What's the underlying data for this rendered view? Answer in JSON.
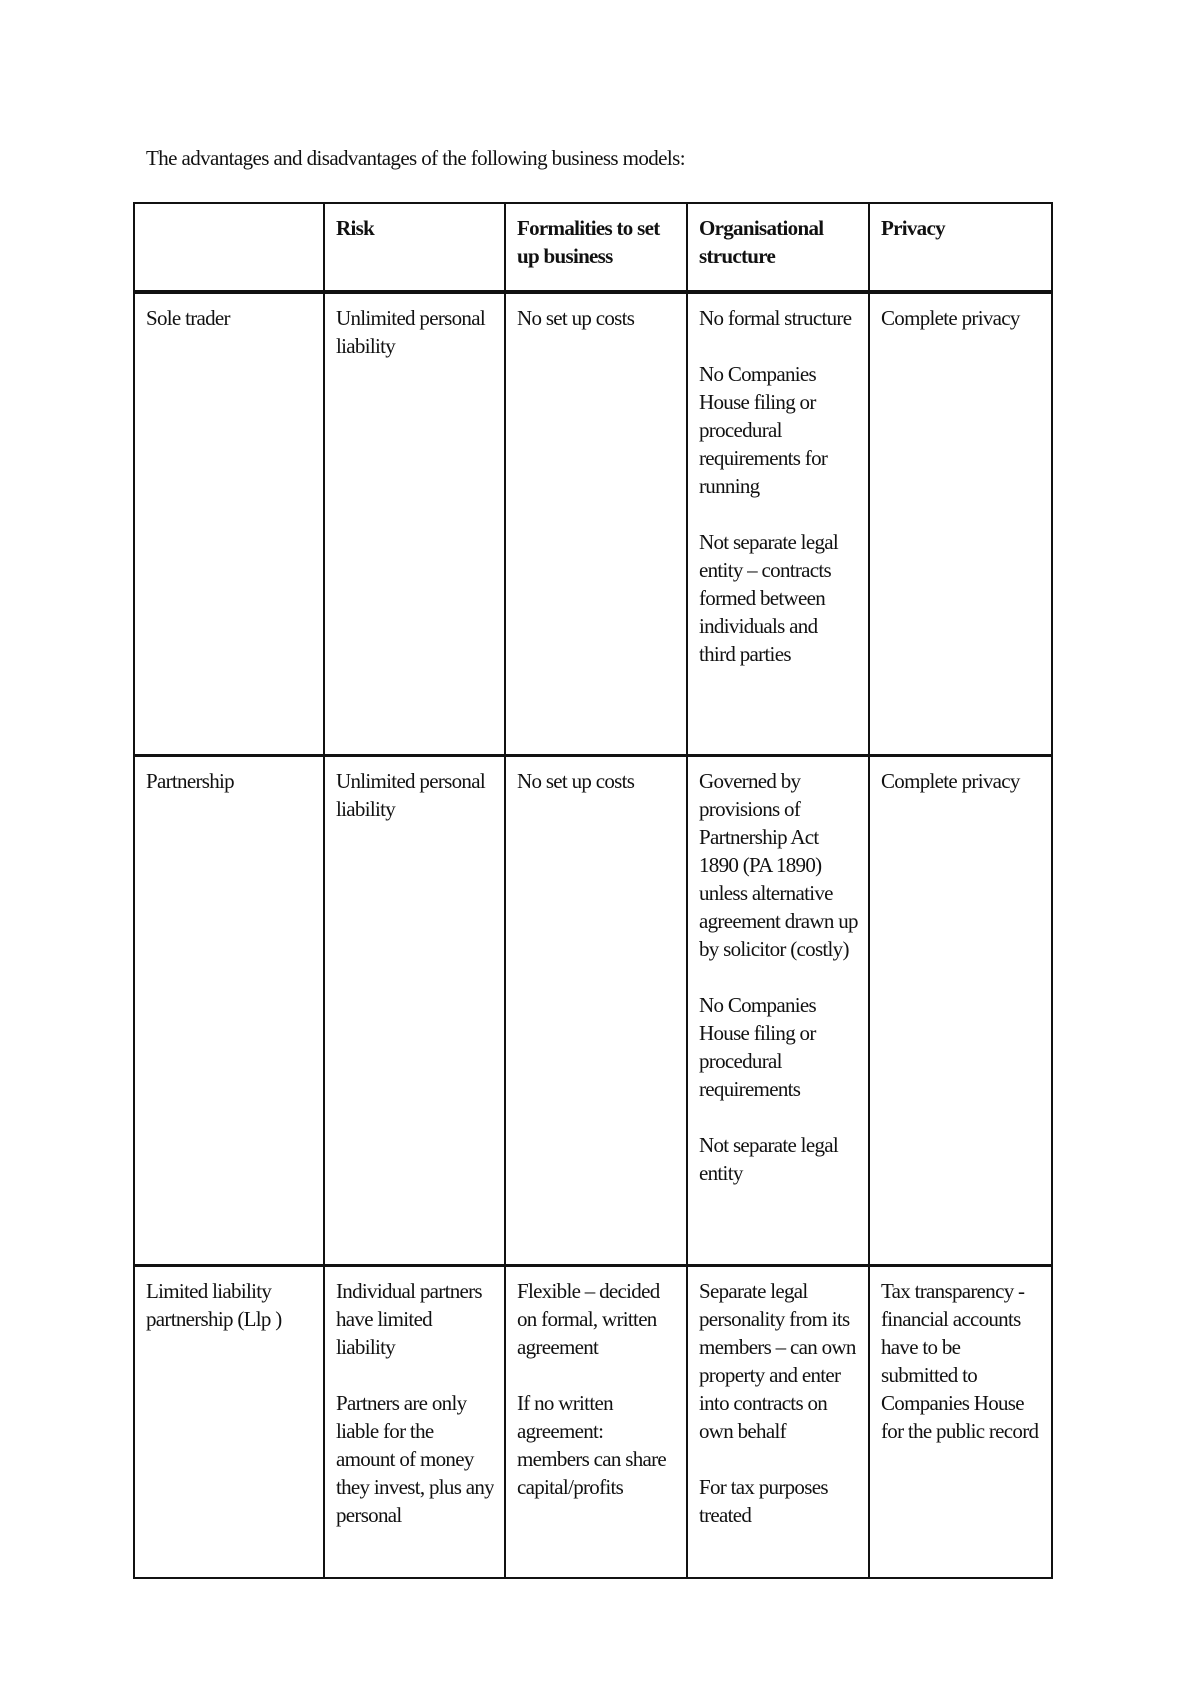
{
  "title": "The advantages and disadvantages of the following business models:",
  "table": {
    "headers": [
      "",
      "Risk",
      "Formalities to set up business",
      "Organisational structure",
      "Privacy"
    ],
    "rows": [
      {
        "model": "Sole trader",
        "risk": [
          "Unlimited personal liability"
        ],
        "formalities": [
          "No set up costs"
        ],
        "structure": [
          "No formal structure",
          "No Companies House filing or procedural requirements for running",
          "Not separate legal entity – contracts formed between individuals and third parties"
        ],
        "privacy": [
          "Complete privacy"
        ]
      },
      {
        "model": "Partnership",
        "risk": [
          "Unlimited personal liability"
        ],
        "formalities": [
          "No set up costs"
        ],
        "structure": [
          "Governed by provisions of Partnership Act 1890 (PA 1890) unless alternative agreement drawn up by solicitor (costly)",
          "No Companies House filing or procedural requirements",
          "Not separate legal entity"
        ],
        "privacy": [
          "Complete privacy"
        ]
      },
      {
        "model": "Limited liability partnership (Llp )",
        "risk": [
          "Individual partners have limited liability",
          "Partners are only liable for the amount of money they invest, plus any personal"
        ],
        "formalities": [
          "Flexible – decided on formal, written agreement",
          "If no written agreement: members can share capital/profits"
        ],
        "structure": [
          "Separate legal personality from its members – can own property and enter into contracts on own behalf",
          "For tax purposes treated"
        ],
        "privacy": [
          "Tax transparency - financial accounts have to be submitted to Companies House for the public record"
        ]
      }
    ]
  }
}
